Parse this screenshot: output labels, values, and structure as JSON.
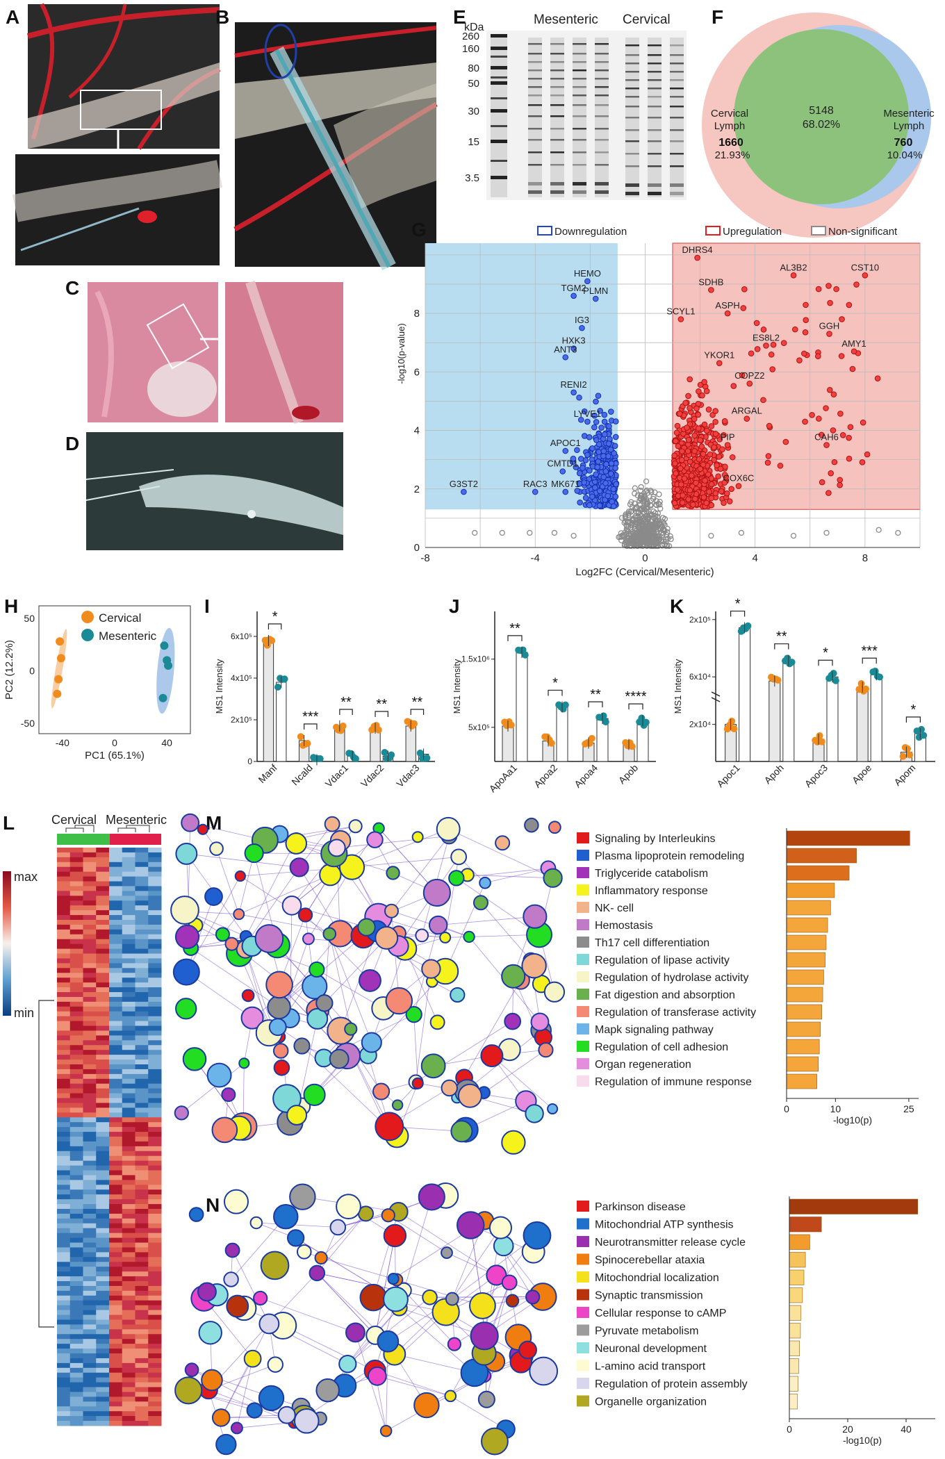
{
  "panel_labels": [
    "A",
    "B",
    "C",
    "D",
    "E",
    "F",
    "G",
    "H",
    "I",
    "J",
    "K",
    "L",
    "M",
    "N"
  ],
  "colors": {
    "cervical": "#f08c1e",
    "mesenteric": "#1a8a96",
    "down": "#1f45d0",
    "up": "#e81c1c",
    "ns": "#8a8a8a",
    "down_bg": "#b8dcf0",
    "up_bg": "#f5c2be",
    "venn_cervical": "#f6c6c0",
    "venn_mesenteric": "#a9c8ec",
    "venn_overlap": "#8cc27c",
    "heat_max": "#b2182b",
    "heat_min": "#2166ac"
  },
  "panel_e": {
    "kda_label": "kDa",
    "markers": [
      "260",
      "160",
      "80",
      "50",
      "30",
      "15",
      "3.5"
    ],
    "group_labels": [
      "Mesenteric",
      "Cervical"
    ]
  },
  "panel_f": {
    "left_label": [
      "Cervical",
      "Lymph"
    ],
    "left_count": "1660",
    "left_pct": "21.93%",
    "center_count": "5148",
    "center_pct": "68.02%",
    "right_label": [
      "Mesenteric",
      "Lymph"
    ],
    "right_count": "760",
    "right_pct": "10.04%"
  },
  "panel_h": {
    "legend": [
      "Cervical",
      "Mesenteric"
    ]
  },
  "panel_l": {
    "legend_max": "max",
    "legend_min": "min",
    "groups": [
      "Cervical",
      "Mesenteric"
    ]
  },
  "chart_data": [
    {
      "id": "G",
      "type": "scatter",
      "title": "",
      "xlabel": "Log2FC (Cervical/Mesenteric)",
      "ylabel": "-log10(p-value)",
      "xlim": [
        -8,
        10
      ],
      "ylim": [
        0,
        10.4
      ],
      "xticks": [
        "-8",
        "-4",
        "0",
        "4",
        "8"
      ],
      "yticks": [
        "0",
        "2",
        "4",
        "6",
        "8"
      ],
      "legend": [
        "Downregulation",
        "Upregulation",
        "Non-significant"
      ],
      "labeled_points": [
        {
          "label": "HEMO",
          "x": -2.1,
          "y": 9.1,
          "group": "down"
        },
        {
          "label": "TGM2",
          "x": -2.6,
          "y": 8.6,
          "group": "down"
        },
        {
          "label": "PLMN",
          "x": -1.8,
          "y": 8.5,
          "group": "down"
        },
        {
          "label": "IG3",
          "x": -2.3,
          "y": 7.5,
          "group": "down"
        },
        {
          "label": "HXK3",
          "x": -2.6,
          "y": 6.8,
          "group": "down"
        },
        {
          "label": "ANT3",
          "x": -2.9,
          "y": 6.5,
          "group": "down"
        },
        {
          "label": "RENI2",
          "x": -2.6,
          "y": 5.3,
          "group": "down"
        },
        {
          "label": "LYVE1",
          "x": -2.1,
          "y": 4.3,
          "group": "down"
        },
        {
          "label": "APOC1",
          "x": -2.9,
          "y": 3.3,
          "group": "down"
        },
        {
          "label": "CMTD1",
          "x": -3.0,
          "y": 2.6,
          "group": "down"
        },
        {
          "label": "MK671",
          "x": -2.9,
          "y": 1.9,
          "group": "down"
        },
        {
          "label": "RAC3",
          "x": -4.0,
          "y": 1.9,
          "group": "down"
        },
        {
          "label": "G3ST2",
          "x": -6.6,
          "y": 1.9,
          "group": "down"
        },
        {
          "label": "DHRS4",
          "x": 1.9,
          "y": 9.9,
          "group": "up"
        },
        {
          "label": "SDHB",
          "x": 2.4,
          "y": 8.8,
          "group": "up"
        },
        {
          "label": "AL3B2",
          "x": 5.4,
          "y": 9.3,
          "group": "up"
        },
        {
          "label": "CST10",
          "x": 8.0,
          "y": 9.3,
          "group": "up"
        },
        {
          "label": "ASPH",
          "x": 3.0,
          "y": 8.0,
          "group": "up"
        },
        {
          "label": "SCYL1",
          "x": 1.3,
          "y": 7.8,
          "group": "up"
        },
        {
          "label": "GGH",
          "x": 6.7,
          "y": 7.3,
          "group": "up"
        },
        {
          "label": "ES8L2",
          "x": 4.4,
          "y": 6.9,
          "group": "up"
        },
        {
          "label": "AMY1",
          "x": 7.6,
          "y": 6.7,
          "group": "up"
        },
        {
          "label": "YKOR1",
          "x": 2.7,
          "y": 6.3,
          "group": "up"
        },
        {
          "label": "COPZ2",
          "x": 3.8,
          "y": 5.6,
          "group": "up"
        },
        {
          "label": "ARGAL",
          "x": 3.7,
          "y": 4.4,
          "group": "up"
        },
        {
          "label": "PIP",
          "x": 3.0,
          "y": 3.5,
          "group": "up"
        },
        {
          "label": "CAH6",
          "x": 6.6,
          "y": 3.5,
          "group": "up"
        },
        {
          "label": "COX6C",
          "x": 3.4,
          "y": 2.1,
          "group": "up"
        }
      ]
    },
    {
      "id": "H",
      "type": "scatter",
      "title": "",
      "xlabel": "PC1 (65.1%)",
      "ylabel": "PC2 (12.2%)",
      "xlim": [
        -58,
        58
      ],
      "ylim": [
        -60,
        62
      ],
      "xticks": [
        "-40",
        "0",
        "40"
      ],
      "yticks": [
        "50",
        "0",
        "-50"
      ],
      "series": [
        {
          "name": "Cervical",
          "points": [
            [
              -42,
              28
            ],
            [
              -41,
              12
            ],
            [
              -43,
              -8
            ],
            [
              -44,
              -22
            ]
          ]
        },
        {
          "name": "Mesenteric",
          "points": [
            [
              38,
              24
            ],
            [
              40,
              10
            ],
            [
              41,
              5
            ],
            [
              37,
              -26
            ]
          ]
        }
      ]
    },
    {
      "id": "I",
      "type": "bar",
      "ylabel": "MS1 Intensity",
      "ylim": [
        0,
        720000
      ],
      "yticks": [
        "0",
        "2x10⁵",
        "4x10⁵",
        "6x10⁵"
      ],
      "categories": [
        "Manf",
        "Ncald",
        "Vdac1",
        "Vdac2",
        "Vdac3"
      ],
      "series": [
        {
          "name": "Cervical",
          "values": [
            580000,
            100000,
            170000,
            160000,
            170000
          ]
        },
        {
          "name": "Mesenteric",
          "values": [
            380000,
            8000,
            25000,
            25000,
            35000
          ]
        }
      ],
      "significance": [
        "*",
        "***",
        "**",
        "**",
        "**"
      ]
    },
    {
      "id": "J",
      "type": "bar",
      "ylabel": "MS1 Intensity",
      "ylim": [
        0,
        2200000
      ],
      "yticks": [
        "5x10⁵",
        "1.5x10⁶"
      ],
      "categories": [
        "ApoAa1",
        "Apoa2",
        "Apoa4",
        "Apob"
      ],
      "series": [
        {
          "name": "Cervical",
          "values": [
            520000,
            300000,
            270000,
            250000
          ]
        },
        {
          "name": "Mesenteric",
          "values": [
            1600000,
            800000,
            630000,
            600000
          ]
        }
      ],
      "significance": [
        "**",
        "*",
        "**",
        "****"
      ]
    },
    {
      "id": "K",
      "type": "bar",
      "ylabel": "MS1 Intensity",
      "yaxis": "broken",
      "yticks": [
        "2x10⁴",
        "6x10⁴",
        "2x10⁵"
      ],
      "categories": [
        "Apoc1",
        "Apoh",
        "Apoc3",
        "Apoe",
        "Apom"
      ],
      "series": [
        {
          "name": "Cervical",
          "values": [
            20000,
            50000,
            12000,
            35000,
            5000
          ]
        },
        {
          "name": "Mesenteric",
          "values": [
            180000,
            100000,
            60000,
            65000,
            15000
          ]
        }
      ],
      "significance": [
        "*",
        "**",
        "*",
        "***",
        "*"
      ]
    },
    {
      "id": "M",
      "type": "bar",
      "orientation": "horizontal",
      "xlabel": "-log10(p)",
      "xticks": [
        "0",
        "10",
        "25"
      ],
      "xlim": [
        0,
        27
      ],
      "categories": [
        "Signaling by Interleukins",
        "Plasma lipoprotein remodeling",
        "Triglyceride catabolism",
        "Inflammatory response",
        "NK- cell",
        "Hemostasis",
        "Th17 cell differentiation",
        "Regulation of lipase activity",
        "Regulation of hydrolase activity",
        "Fat digestion and absorption",
        "Regulation of transferase activity",
        "Mapk signaling pathway",
        "Regulation of cell adhesion",
        "Organ regeneration",
        "Regulation of immune response"
      ],
      "values": [
        25.2,
        14.3,
        12.8,
        9.8,
        9.0,
        8.4,
        8.1,
        7.9,
        7.6,
        7.4,
        7.2,
        6.9,
        6.7,
        6.5,
        6.2
      ],
      "legend_colors": [
        "#e31a1c",
        "#1f5fd0",
        "#a033b8",
        "#f5f21c",
        "#f2b38a",
        "#c07ac8",
        "#8c8c8c",
        "#7fd8d8",
        "#f7f4c8",
        "#6ab04c",
        "#f58a74",
        "#6bb4ea",
        "#22dd22",
        "#e68cde",
        "#f8dcec"
      ]
    },
    {
      "id": "N",
      "type": "bar",
      "orientation": "horizontal",
      "xlabel": "-log10(p)",
      "xticks": [
        "0",
        "20",
        "40"
      ],
      "xlim": [
        0,
        50
      ],
      "categories": [
        "Parkinson disease",
        "Mitochondrial ATP synthesis",
        "Neurotransmitter release cycle",
        "Spinocerebellar ataxia",
        "Mitochondrial localization",
        "Synaptic transmission",
        "Cellular response to cAMP",
        "Pyruvate metabolism",
        "Neuronal development",
        "L-amino acid transport",
        "Regulation of protein assembly",
        "Organelle organization"
      ],
      "values": [
        44,
        11,
        7,
        5.5,
        5,
        4.5,
        4,
        3.8,
        3.5,
        3.2,
        3,
        2.8
      ],
      "legend_colors": [
        "#e31a1c",
        "#1f6fcc",
        "#9a2fb0",
        "#f07d10",
        "#f5e01c",
        "#b8320c",
        "#ee44c8",
        "#9c9c9c",
        "#8ee0e0",
        "#fdfbd0",
        "#d8d6ec",
        "#b0a820"
      ]
    }
  ]
}
